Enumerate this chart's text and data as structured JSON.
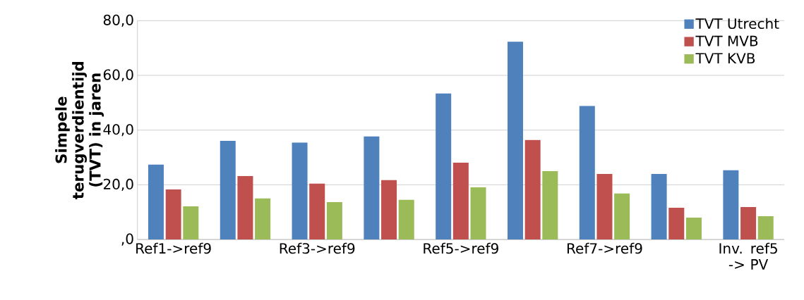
{
  "chart_data": {
    "type": "bar",
    "categories": [
      "Ref1->ref9",
      null,
      "Ref3->ref9",
      null,
      "Ref5->ref9",
      null,
      "Ref7->ref9",
      null,
      "Inv. ref5 -> PV"
    ],
    "series": [
      {
        "name": "TVT Utrecht",
        "color": "#4f81bd",
        "values": [
          27.4,
          36.1,
          35.4,
          37.7,
          53.4,
          72.3,
          48.8,
          24.0,
          25.3
        ]
      },
      {
        "name": "TVT MVB",
        "color": "#c0504d",
        "values": [
          18.3,
          23.2,
          20.4,
          21.7,
          28.1,
          36.4,
          24.0,
          11.6,
          11.9
        ]
      },
      {
        "name": "TVT KVB",
        "color": "#9bbb59",
        "values": [
          12.1,
          15.0,
          13.7,
          14.5,
          19.1,
          25.0,
          16.8,
          8.0,
          8.5
        ]
      }
    ],
    "ylabel": "Simpele terugverdientijd (TVT) in jaren",
    "ylim": [
      0,
      80
    ],
    "yticks": [
      {
        "value": 0,
        "label": ",0"
      },
      {
        "value": 20,
        "label": "20,0"
      },
      {
        "value": 40,
        "label": "40,0"
      },
      {
        "value": 60,
        "label": "60,0"
      },
      {
        "value": 80,
        "label": "80,0"
      }
    ],
    "grid": "y",
    "legend": "top right"
  }
}
